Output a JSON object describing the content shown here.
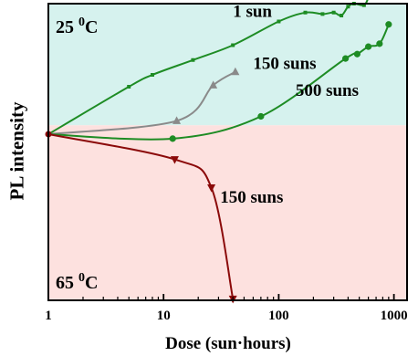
{
  "chart_data": {
    "type": "line",
    "xlabel": "Dose (sun·hours)",
    "ylabel": "PL intensity",
    "x_scale": "log",
    "xlim": [
      1,
      1300
    ],
    "ylim": [
      0,
      10
    ],
    "x_ticks": [
      1,
      10,
      100,
      1000
    ],
    "x_tick_labels": [
      "1",
      "10",
      "100",
      "1000"
    ],
    "regions": [
      {
        "name": "25 °C",
        "label_main": "25 ",
        "label_sup": "0",
        "label_tail": "C",
        "color": "#d6f2ee",
        "y_range": [
          5.9,
          10
        ]
      },
      {
        "name": "65 °C",
        "label_main": "65 ",
        "label_sup": "0",
        "label_tail": "C",
        "color": "#fde1df",
        "y_range": [
          0,
          5.9
        ]
      }
    ],
    "series": [
      {
        "name": "1 sun",
        "temperature": "25 °C",
        "color": "#1e8c24",
        "marker": "square",
        "points": [
          {
            "x": 1,
            "y": 5.6
          },
          {
            "x": 5,
            "y": 7.2
          },
          {
            "x": 8,
            "y": 7.6
          },
          {
            "x": 18,
            "y": 8.1
          },
          {
            "x": 40,
            "y": 8.6
          },
          {
            "x": 100,
            "y": 9.4
          },
          {
            "x": 170,
            "y": 9.7
          },
          {
            "x": 240,
            "y": 9.65
          },
          {
            "x": 300,
            "y": 9.7
          },
          {
            "x": 350,
            "y": 9.6
          },
          {
            "x": 400,
            "y": 9.9
          },
          {
            "x": 450,
            "y": 10.0
          },
          {
            "x": 550,
            "y": 9.95
          },
          {
            "x": 600,
            "y": 10.2
          }
        ]
      },
      {
        "name": "150 suns",
        "temperature": "25 °C",
        "color": "#8a8a8a",
        "marker": "triangle-up",
        "points": [
          {
            "x": 1,
            "y": 5.6
          },
          {
            "x": 13,
            "y": 6.05
          },
          {
            "x": 27,
            "y": 7.25
          },
          {
            "x": 42,
            "y": 7.7
          }
        ]
      },
      {
        "name": "500 suns",
        "temperature": "25 °C",
        "color": "#1e8c24",
        "marker": "circle",
        "points": [
          {
            "x": 1,
            "y": 5.6
          },
          {
            "x": 12,
            "y": 5.45
          },
          {
            "x": 70,
            "y": 6.2
          },
          {
            "x": 380,
            "y": 8.15
          },
          {
            "x": 480,
            "y": 8.3
          },
          {
            "x": 600,
            "y": 8.55
          },
          {
            "x": 750,
            "y": 8.65
          },
          {
            "x": 900,
            "y": 9.3
          }
        ]
      },
      {
        "name": "150 suns",
        "temperature": "65 °C",
        "color": "#8b0a0a",
        "marker": "triangle-down",
        "points": [
          {
            "x": 1,
            "y": 5.6
          },
          {
            "x": 12.5,
            "y": 4.75
          },
          {
            "x": 26,
            "y": 3.8
          },
          {
            "x": 40,
            "y": 0.05
          }
        ]
      }
    ],
    "annotations": [
      {
        "text": "1 sun",
        "x": 40,
        "y": 9.55
      },
      {
        "text": "150 suns",
        "x": 60,
        "y": 7.8
      },
      {
        "text": "500 suns",
        "x": 140,
        "y": 6.9
      },
      {
        "text": "150 suns",
        "x": 31,
        "y": 3.3
      }
    ]
  }
}
